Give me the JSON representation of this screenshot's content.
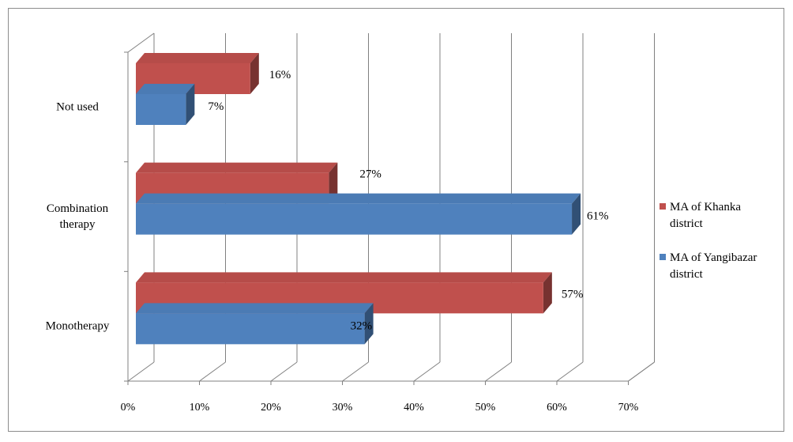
{
  "chart_data": {
    "type": "bar",
    "orientation": "horizontal",
    "categories": [
      "Monotherapy",
      "Combination therapy",
      "Not used"
    ],
    "series": [
      {
        "name": "MA of Khanka district",
        "values": [
          57,
          27,
          16
        ],
        "color": "#c0504d",
        "labels": [
          "57%",
          "27%",
          "16%"
        ]
      },
      {
        "name": "MA of Yangibazar district",
        "values": [
          32,
          61,
          7
        ],
        "color": "#4f81bd",
        "labels": [
          "32%",
          "61%",
          "7%"
        ]
      }
    ],
    "xlim": [
      0,
      70
    ],
    "xticks": [
      "0%",
      "10%",
      "20%",
      "30%",
      "40%",
      "50%",
      "60%",
      "70%"
    ],
    "grid": true,
    "legend": "right",
    "style": "3d"
  }
}
